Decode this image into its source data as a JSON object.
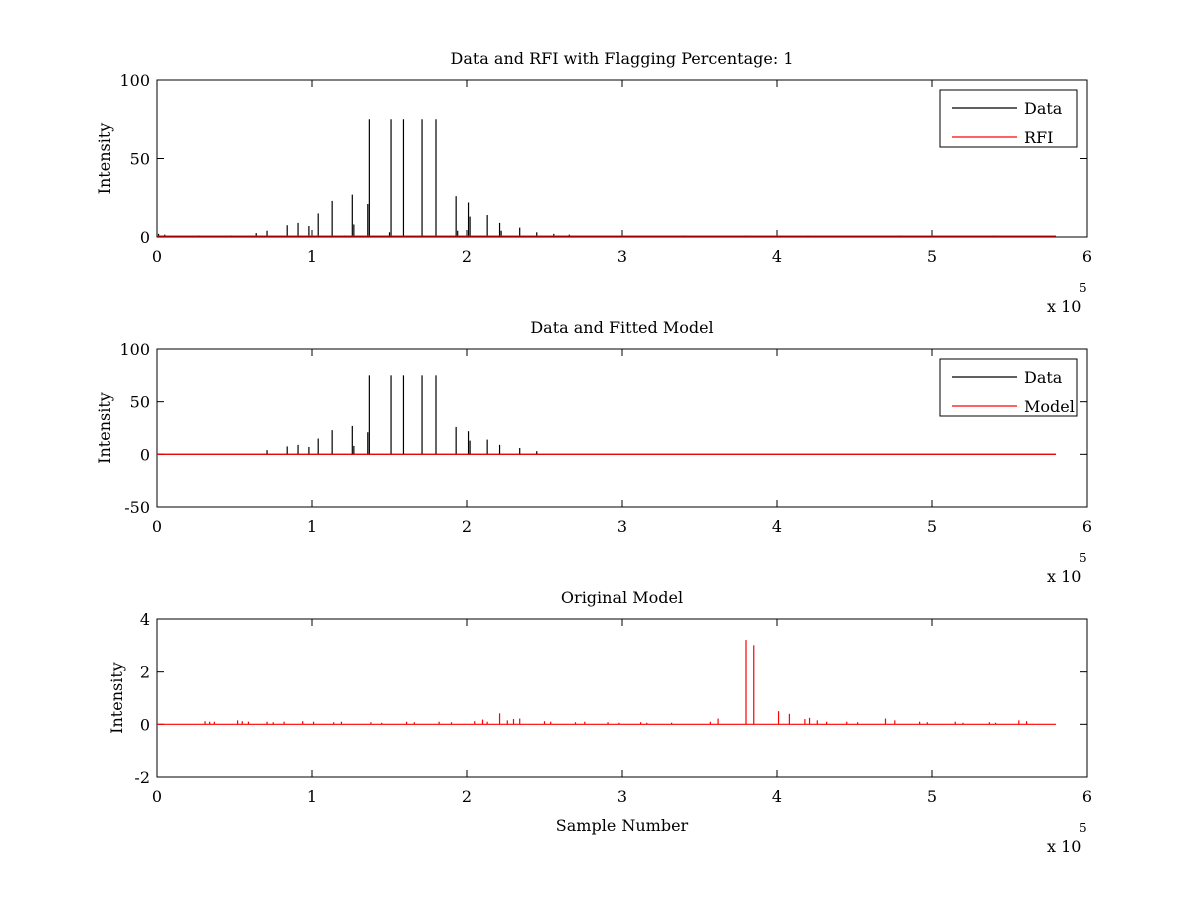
{
  "chart_data": [
    {
      "type": "line",
      "title": "Data and RFI with Flagging Percentage: 1",
      "xlabel": "",
      "ylabel": "Intensity",
      "xlim": [
        0,
        600000
      ],
      "ylim": [
        0,
        100
      ],
      "xticks": [
        0,
        100000,
        200000,
        300000,
        400000,
        500000,
        600000
      ],
      "xtick_labels": [
        "0",
        "1",
        "2",
        "3",
        "4",
        "5",
        "6"
      ],
      "yticks": [
        0,
        50,
        100
      ],
      "ytick_labels": [
        "0",
        "50",
        "100"
      ],
      "x_multiplier": {
        "base": "x 10",
        "exp": "5"
      },
      "baseline": 0.6,
      "legend": "top-right",
      "series": [
        {
          "name": "Data",
          "color": "#000000",
          "spikes": [
            [
              1000,
              2
            ],
            [
              5000,
              1.5
            ],
            [
              27000,
              1
            ],
            [
              48000,
              1
            ],
            [
              64000,
              2.5
            ],
            [
              71000,
              4
            ],
            [
              84000,
              7.5
            ],
            [
              91000,
              9
            ],
            [
              98000,
              7
            ],
            [
              104000,
              15
            ],
            [
              113000,
              23
            ],
            [
              121000,
              1
            ],
            [
              126000,
              27
            ],
            [
              127000,
              8
            ],
            [
              137000,
              75
            ],
            [
              136000,
              21
            ],
            [
              151000,
              75
            ],
            [
              150000,
              3
            ],
            [
              159000,
              75
            ],
            [
              171000,
              75
            ],
            [
              171500,
              1
            ],
            [
              180000,
              75
            ],
            [
              193000,
              26
            ],
            [
              194000,
              4
            ],
            [
              201000,
              22
            ],
            [
              202000,
              13
            ],
            [
              213000,
              14
            ],
            [
              221000,
              9
            ],
            [
              222000,
              4
            ],
            [
              234000,
              6
            ],
            [
              245000,
              3
            ],
            [
              256000,
              2
            ],
            [
              266000,
              1.5
            ],
            [
              300000,
              1
            ],
            [
              340000,
              1
            ],
            [
              380000,
              1
            ],
            [
              420000,
              1
            ],
            [
              480000,
              1
            ],
            [
              540000,
              1
            ]
          ]
        },
        {
          "name": "RFI",
          "color": "#ff0000",
          "spikes": []
        }
      ]
    },
    {
      "type": "line",
      "title": "Data and Fitted Model",
      "xlabel": "",
      "ylabel": "Intensity",
      "xlim": [
        0,
        600000
      ],
      "ylim": [
        -50,
        100
      ],
      "xticks": [
        0,
        100000,
        200000,
        300000,
        400000,
        500000,
        600000
      ],
      "xtick_labels": [
        "0",
        "1",
        "2",
        "3",
        "4",
        "5",
        "6"
      ],
      "yticks": [
        -50,
        0,
        50,
        100
      ],
      "ytick_labels": [
        "-50",
        "0",
        "50",
        "100"
      ],
      "x_multiplier": {
        "base": "x 10",
        "exp": "5"
      },
      "baseline": 0,
      "legend": "top-right",
      "series": [
        {
          "name": "Data",
          "color": "#000000",
          "spikes": [
            [
              71000,
              4
            ],
            [
              84000,
              7.5
            ],
            [
              91000,
              9
            ],
            [
              98000,
              7
            ],
            [
              104000,
              15
            ],
            [
              113000,
              23
            ],
            [
              126000,
              27
            ],
            [
              127000,
              8
            ],
            [
              137000,
              75
            ],
            [
              136000,
              21
            ],
            [
              151000,
              75
            ],
            [
              159000,
              75
            ],
            [
              171000,
              75
            ],
            [
              180000,
              75
            ],
            [
              193000,
              26
            ],
            [
              201000,
              22
            ],
            [
              202000,
              13
            ],
            [
              213000,
              14
            ],
            [
              221000,
              9
            ],
            [
              234000,
              6
            ],
            [
              245000,
              3
            ]
          ]
        },
        {
          "name": "Model",
          "color": "#ff0000",
          "spikes": []
        }
      ]
    },
    {
      "type": "line",
      "title": "Original Model",
      "xlabel": "Sample Number",
      "ylabel": "Intensity",
      "xlim": [
        0,
        600000
      ],
      "ylim": [
        -2,
        4
      ],
      "xticks": [
        0,
        100000,
        200000,
        300000,
        400000,
        500000,
        600000
      ],
      "xtick_labels": [
        "0",
        "1",
        "2",
        "3",
        "4",
        "5",
        "6"
      ],
      "yticks": [
        -2,
        0,
        2,
        4
      ],
      "ytick_labels": [
        "-2",
        "0",
        "2",
        "4"
      ],
      "x_multiplier": {
        "base": "x 10",
        "exp": "5"
      },
      "baseline": 0,
      "legend": "none",
      "series": [
        {
          "name": "",
          "color": "#ff0000",
          "spikes": [
            [
              31000,
              0.12
            ],
            [
              34000,
              0.1
            ],
            [
              37000,
              0.1
            ],
            [
              52000,
              0.15
            ],
            [
              55000,
              0.12
            ],
            [
              59000,
              0.1
            ],
            [
              71000,
              0.1
            ],
            [
              75000,
              0.08
            ],
            [
              82000,
              0.1
            ],
            [
              94000,
              0.12
            ],
            [
              101000,
              0.1
            ],
            [
              114000,
              0.08
            ],
            [
              119000,
              0.1
            ],
            [
              138000,
              0.08
            ],
            [
              145000,
              0.06
            ],
            [
              161000,
              0.1
            ],
            [
              166000,
              0.08
            ],
            [
              182000,
              0.1
            ],
            [
              190000,
              0.08
            ],
            [
              205000,
              0.12
            ],
            [
              210000,
              0.18
            ],
            [
              213000,
              0.1
            ],
            [
              221000,
              0.42
            ],
            [
              226000,
              0.15
            ],
            [
              230000,
              0.2
            ],
            [
              234000,
              0.22
            ],
            [
              250000,
              0.12
            ],
            [
              254000,
              0.1
            ],
            [
              270000,
              0.08
            ],
            [
              276000,
              0.1
            ],
            [
              291000,
              0.08
            ],
            [
              298000,
              0.06
            ],
            [
              312000,
              0.08
            ],
            [
              316000,
              0.06
            ],
            [
              332000,
              0.06
            ],
            [
              357000,
              0.1
            ],
            [
              362000,
              0.22
            ],
            [
              380000,
              3.2
            ],
            [
              385000,
              3.0
            ],
            [
              401000,
              0.5
            ],
            [
              408000,
              0.4
            ],
            [
              418000,
              0.2
            ],
            [
              421000,
              0.25
            ],
            [
              426000,
              0.15
            ],
            [
              432000,
              0.1
            ],
            [
              445000,
              0.1
            ],
            [
              452000,
              0.08
            ],
            [
              470000,
              0.22
            ],
            [
              476000,
              0.15
            ],
            [
              492000,
              0.1
            ],
            [
              497000,
              0.08
            ],
            [
              515000,
              0.1
            ],
            [
              520000,
              0.06
            ],
            [
              537000,
              0.08
            ],
            [
              541000,
              0.06
            ],
            [
              556000,
              0.15
            ],
            [
              561000,
              0.12
            ]
          ]
        }
      ]
    }
  ]
}
